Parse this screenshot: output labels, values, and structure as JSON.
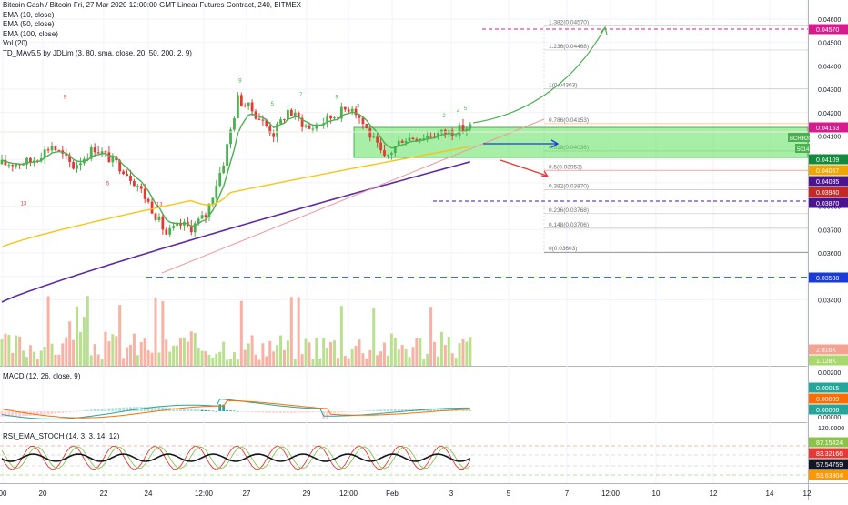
{
  "header": {
    "title": "Bitcoin Cash / Bitcoin Fri, 27 Mar 2020 12:00:00 GMT Linear Futures Contract, 240, BITMEX",
    "indicators": [
      "EMA (10, close)",
      "EMA (50, close)",
      "EMA (100, close)",
      "Vol (20)",
      "TD_MAv5.5 by JDLim (3, 80, sma, close, 20, 50, 200, 2, 9)"
    ]
  },
  "main_pane": {
    "price_axis_labels": [
      "0.04600",
      "0.04500",
      "0.04400",
      "0.04300",
      "0.04200",
      "0.04100",
      "0.04000",
      "0.03900",
      "0.03800",
      "0.03700",
      "0.03600",
      "0.03500",
      "0.03400"
    ],
    "price_tags": [
      {
        "text": "0.04570",
        "color": "#d81b8c"
      },
      {
        "text": "0.04153",
        "color": "#d81b8c"
      },
      {
        "text": "0.04109",
        "color": "#138a3d"
      },
      {
        "text": "0.04057",
        "color": "#f0a500"
      },
      {
        "text": "0.04035",
        "color": "#4a148c"
      },
      {
        "text": "0.03940",
        "color": "#c62828"
      },
      {
        "text": "0.03870",
        "color": "#4a148c"
      },
      {
        "text": "0.03598",
        "color": "#1a3bd6"
      },
      {
        "text": "2.816K",
        "color": "#f4a291"
      },
      {
        "text": "1.128K",
        "color": "#a9d86e"
      }
    ],
    "symbol_tags": [
      "BCHH20",
      "50147"
    ],
    "fib_levels": [
      {
        "label": "1.382(0.04570)"
      },
      {
        "label": "1.236(0.04468)"
      },
      {
        "label": "1(0.04303)"
      },
      {
        "label": "0.786(0.04153)"
      },
      {
        "label": "0.618(0.04036)"
      },
      {
        "label": "0.5(0.03953)"
      },
      {
        "label": "0.382(0.03870)"
      },
      {
        "label": "0.236(0.03768)"
      },
      {
        "label": "0.148(0.03706)"
      },
      {
        "label": "0(0.03603)"
      }
    ],
    "td_counts": [
      "1",
      "2",
      "3",
      "4",
      "5",
      "6",
      "7",
      "8",
      "9",
      "13"
    ]
  },
  "macd_pane": {
    "title": "MACD (12, 26, close, 9)",
    "axis_labels": [
      "0.00200",
      "0.00000"
    ],
    "tags": [
      {
        "text": "0.00015",
        "color": "#26a69a"
      },
      {
        "text": "0.00009",
        "color": "#ff6d00"
      },
      {
        "text": "0.00006",
        "color": "#26a69a"
      }
    ]
  },
  "rsi_pane": {
    "title": "RSI_EMA_STOCH (14, 3, 3, 14, 12)",
    "axis_labels": [
      "120.0000"
    ],
    "tags": [
      {
        "text": "87.15424",
        "color": "#8bc34a"
      },
      {
        "text": "83.32166",
        "color": "#e53935"
      },
      {
        "text": "57.54759",
        "color": "#131722"
      },
      {
        "text": "53.63304",
        "color": "#ff9800"
      }
    ]
  },
  "time_axis": {
    "labels": [
      "00",
      "20",
      "22",
      "24",
      "12:00",
      "27",
      "29",
      "12:00",
      "Feb",
      "3",
      "5",
      "7",
      "12:00",
      "10",
      "12",
      "14",
      "12"
    ]
  }
}
